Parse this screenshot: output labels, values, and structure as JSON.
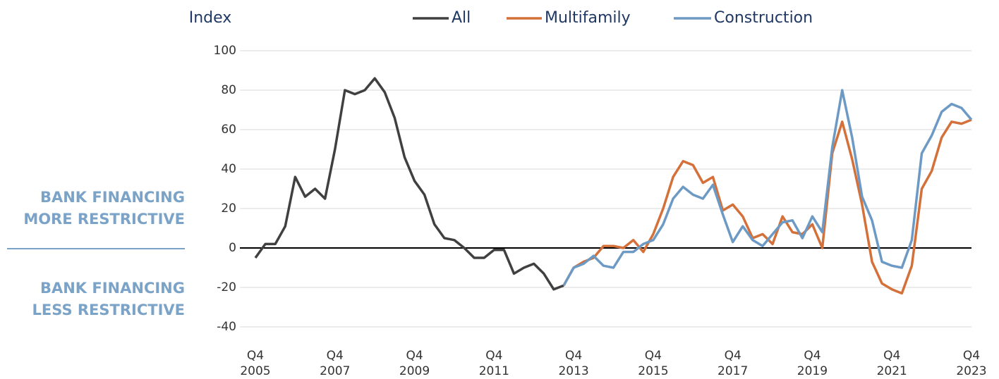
{
  "chart_data": {
    "type": "line",
    "y_label": "Index",
    "annotations": [
      [
        "BANK FINANCING",
        "MORE RESTRICTIVE"
      ],
      [
        "BANK FINANCING",
        "LESS RESTRICTIVE"
      ]
    ],
    "categories": [
      "Q4 2005",
      null,
      null,
      null,
      null,
      null,
      null,
      null,
      "Q4 2007",
      null,
      null,
      null,
      null,
      null,
      null,
      null,
      "Q4 2009",
      null,
      null,
      null,
      null,
      null,
      null,
      null,
      "Q4 2011",
      null,
      null,
      null,
      null,
      null,
      null,
      null,
      "Q4 2013",
      null,
      null,
      null,
      null,
      null,
      null,
      null,
      "Q4 2015",
      null,
      null,
      null,
      null,
      null,
      null,
      null,
      "Q4 2017",
      null,
      null,
      null,
      null,
      null,
      null,
      null,
      "Q4 2019",
      null,
      null,
      null,
      null,
      null,
      null,
      null,
      "Q4 2021",
      null,
      null,
      null,
      null,
      null,
      null,
      null,
      "Q4 2023"
    ],
    "series": [
      {
        "name": "All",
        "color": "#404040",
        "values": [
          -5,
          2,
          2,
          11,
          36,
          26,
          30,
          25,
          50,
          80,
          78,
          80,
          86,
          79,
          66,
          46,
          34,
          27,
          12,
          5,
          4,
          0,
          -5,
          -5,
          -1,
          -1,
          -13,
          -10,
          -8,
          -13,
          -21,
          -19,
          null,
          null,
          null,
          null,
          null,
          null,
          null,
          null,
          null,
          null,
          null,
          null,
          null,
          null,
          null,
          null,
          null,
          null,
          null,
          null,
          null,
          null,
          null,
          null,
          null,
          null,
          null,
          null,
          null,
          null,
          null,
          null,
          null,
          null,
          null,
          null,
          null,
          null,
          null,
          null,
          null
        ]
      },
      {
        "name": "Multifamily",
        "color": "#d4703a",
        "values": [
          null,
          null,
          null,
          null,
          null,
          null,
          null,
          null,
          null,
          null,
          null,
          null,
          null,
          null,
          null,
          null,
          null,
          null,
          null,
          null,
          null,
          null,
          null,
          null,
          null,
          null,
          null,
          null,
          null,
          null,
          null,
          -19,
          -10,
          -7,
          -5,
          1,
          1,
          0,
          4,
          -2,
          7,
          20,
          36,
          44,
          42,
          33,
          36,
          19,
          22,
          16,
          5,
          7,
          2,
          16,
          8,
          7,
          12,
          0,
          48,
          64,
          45,
          22,
          -7,
          -18,
          -21,
          -23,
          -9,
          30,
          39,
          56,
          64,
          63,
          65
        ]
      },
      {
        "name": "Construction",
        "color": "#6d9ac4",
        "values": [
          null,
          null,
          null,
          null,
          null,
          null,
          null,
          null,
          null,
          null,
          null,
          null,
          null,
          null,
          null,
          null,
          null,
          null,
          null,
          null,
          null,
          null,
          null,
          null,
          null,
          null,
          null,
          null,
          null,
          null,
          null,
          -19,
          -10,
          -8,
          -4,
          -9,
          -10,
          -2,
          -2,
          2,
          4,
          12,
          25,
          31,
          27,
          25,
          32,
          17,
          3,
          11,
          4,
          1,
          7,
          13,
          14,
          5,
          16,
          8,
          51,
          80,
          56,
          26,
          14,
          -7,
          -9,
          -10,
          4,
          48,
          57,
          69,
          73,
          71,
          65
        ]
      }
    ],
    "ylim": [
      -40,
      100
    ],
    "yticks": [
      -40,
      -20,
      0,
      20,
      40,
      60,
      80,
      100
    ],
    "grid": true
  }
}
